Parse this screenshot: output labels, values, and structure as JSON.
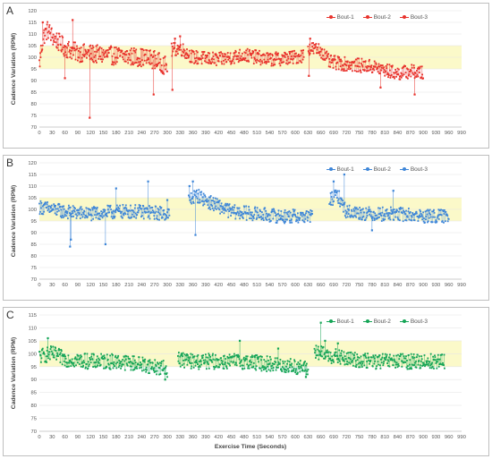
{
  "chart_data": [
    {
      "panel": "A",
      "type": "scatter",
      "ylabel": "Cadence Variation (RPM)",
      "xlabel": "",
      "ylim": [
        70,
        120
      ],
      "yticks": [
        70,
        75,
        80,
        85,
        90,
        95,
        100,
        105,
        110,
        115,
        120
      ],
      "xlim": [
        0,
        990
      ],
      "xticks": [
        0,
        30,
        60,
        90,
        120,
        150,
        180,
        210,
        240,
        270,
        300,
        330,
        360,
        390,
        420,
        450,
        480,
        510,
        540,
        570,
        600,
        630,
        660,
        690,
        720,
        750,
        780,
        810,
        840,
        870,
        900,
        930,
        960,
        990
      ],
      "band": [
        95,
        105
      ],
      "band_color": "#fbf9c9",
      "color": "#e8322c",
      "legend_position": "top-right",
      "legend": [
        "Bout-1",
        "Bout-2",
        "Bout-3"
      ],
      "series": [
        {
          "name": "Bout-1",
          "x_range": [
            0,
            300
          ],
          "keyframes": [
            [
              0,
              97
            ],
            [
              5,
              104
            ],
            [
              10,
              109
            ],
            [
              20,
              112
            ],
            [
              30,
              109
            ],
            [
              60,
              104
            ],
            [
              90,
              102
            ],
            [
              150,
              101
            ],
            [
              240,
              100
            ],
            [
              270,
              99
            ],
            [
              300,
              96
            ]
          ],
          "spread": 4,
          "outliers": [
            [
              8,
              115
            ],
            [
              60,
              91
            ],
            [
              78,
              116
            ],
            [
              118,
              74
            ],
            [
              268,
              84
            ]
          ]
        },
        {
          "name": "Bout-2",
          "x_range": [
            310,
            620
          ],
          "keyframes": [
            [
              310,
              103
            ],
            [
              330,
              104
            ],
            [
              360,
              100
            ],
            [
              420,
              99
            ],
            [
              480,
              101
            ],
            [
              540,
              99
            ],
            [
              600,
              100
            ],
            [
              620,
              101
            ]
          ],
          "spread": 3,
          "outliers": [
            [
              312,
              86
            ],
            [
              318,
              108
            ],
            [
              330,
              109
            ]
          ]
        },
        {
          "name": "Bout-3",
          "x_range": [
            630,
            900
          ],
          "keyframes": [
            [
              630,
              104
            ],
            [
              660,
              103
            ],
            [
              680,
              98
            ],
            [
              720,
              97
            ],
            [
              780,
              96
            ],
            [
              840,
              93
            ],
            [
              870,
              94
            ],
            [
              900,
              93
            ]
          ],
          "spread": 3,
          "outliers": [
            [
              632,
              92
            ],
            [
              635,
              108
            ],
            [
              800,
              87
            ],
            [
              880,
              84
            ]
          ]
        }
      ]
    },
    {
      "panel": "B",
      "type": "scatter",
      "ylabel": "Cadence Variation (RPM)",
      "xlabel": "",
      "ylim": [
        70,
        120
      ],
      "yticks": [
        70,
        75,
        80,
        85,
        90,
        95,
        100,
        105,
        110,
        115,
        120
      ],
      "xlim": [
        0,
        990
      ],
      "xticks": [
        0,
        30,
        60,
        90,
        120,
        150,
        180,
        210,
        240,
        270,
        300,
        330,
        360,
        390,
        420,
        450,
        480,
        510,
        540,
        570,
        600,
        630,
        660,
        690,
        720,
        750,
        780,
        810,
        840,
        870,
        900,
        930,
        960,
        990
      ],
      "band": [
        95,
        105
      ],
      "band_color": "#fbf9c9",
      "color": "#3e86d8",
      "legend_position": "top-right",
      "legend": [
        "Bout-1",
        "Bout-2",
        "Bout-3"
      ],
      "series": [
        {
          "name": "Bout-1",
          "x_range": [
            0,
            305
          ],
          "keyframes": [
            [
              0,
              101
            ],
            [
              30,
              100
            ],
            [
              60,
              99
            ],
            [
              120,
              98
            ],
            [
              180,
              99
            ],
            [
              240,
              99
            ],
            [
              305,
              98
            ]
          ],
          "spread": 3,
          "outliers": [
            [
              72,
              84
            ],
            [
              74,
              87
            ],
            [
              155,
              85
            ],
            [
              180,
              109
            ],
            [
              255,
              112
            ],
            [
              300,
              104
            ]
          ]
        },
        {
          "name": "Bout-2",
          "x_range": [
            350,
            640
          ],
          "keyframes": [
            [
              350,
              104
            ],
            [
              370,
              106
            ],
            [
              400,
              103
            ],
            [
              450,
              99
            ],
            [
              510,
              98
            ],
            [
              570,
              97
            ],
            [
              640,
              97
            ]
          ],
          "spread": 3,
          "outliers": [
            [
              352,
              110
            ],
            [
              360,
              112
            ],
            [
              366,
              89
            ]
          ]
        },
        {
          "name": "Bout-3",
          "x_range": [
            680,
            960
          ],
          "keyframes": [
            [
              680,
              104
            ],
            [
              700,
              106
            ],
            [
              720,
              99
            ],
            [
              780,
              98
            ],
            [
              840,
              98
            ],
            [
              900,
              97
            ],
            [
              960,
              97
            ]
          ],
          "spread": 3,
          "outliers": [
            [
              690,
              112
            ],
            [
              715,
              115
            ],
            [
              780,
              91
            ],
            [
              830,
              108
            ]
          ]
        }
      ]
    },
    {
      "panel": "C",
      "type": "scatter",
      "ylabel": "Cadence Variation (RPM)",
      "xlabel": "Exercise Time (Seconds)",
      "ylim": [
        70,
        115
      ],
      "yticks": [
        70,
        75,
        80,
        85,
        90,
        95,
        100,
        105,
        110,
        115
      ],
      "xlim": [
        0,
        990
      ],
      "xticks": [
        0,
        30,
        60,
        90,
        120,
        150,
        180,
        210,
        240,
        270,
        300,
        330,
        360,
        390,
        420,
        450,
        480,
        510,
        540,
        570,
        600,
        630,
        660,
        690,
        720,
        750,
        780,
        810,
        840,
        870,
        900,
        930,
        960,
        990
      ],
      "band": [
        95,
        105
      ],
      "band_color": "#fbf9c9",
      "color": "#15a556",
      "legend_position": "top-right",
      "legend": [
        "Bout-1",
        "Bout-2",
        "Bout-3"
      ],
      "series": [
        {
          "name": "Bout-1",
          "x_range": [
            0,
            300
          ],
          "keyframes": [
            [
              0,
              99
            ],
            [
              30,
              100
            ],
            [
              60,
              98
            ],
            [
              120,
              97
            ],
            [
              180,
              97
            ],
            [
              240,
              96
            ],
            [
              300,
              94
            ]
          ],
          "spread": 3,
          "outliers": [
            [
              20,
              106
            ],
            [
              295,
              90
            ]
          ]
        },
        {
          "name": "Bout-2",
          "x_range": [
            325,
            630
          ],
          "keyframes": [
            [
              325,
              98
            ],
            [
              360,
              97
            ],
            [
              420,
              97
            ],
            [
              480,
              97
            ],
            [
              540,
              96
            ],
            [
              600,
              95
            ],
            [
              630,
              94
            ]
          ],
          "spread": 3,
          "outliers": [
            [
              470,
              105
            ],
            [
              560,
              102
            ],
            [
              625,
              91
            ]
          ]
        },
        {
          "name": "Bout-3",
          "x_range": [
            645,
            950
          ],
          "keyframes": [
            [
              645,
              101
            ],
            [
              660,
              100
            ],
            [
              690,
              99
            ],
            [
              720,
              98
            ],
            [
              780,
              97
            ],
            [
              840,
              97
            ],
            [
              900,
              97
            ],
            [
              950,
              97
            ]
          ],
          "spread": 3,
          "outliers": [
            [
              660,
              112
            ],
            [
              670,
              105
            ],
            [
              700,
              104
            ]
          ]
        }
      ]
    }
  ]
}
